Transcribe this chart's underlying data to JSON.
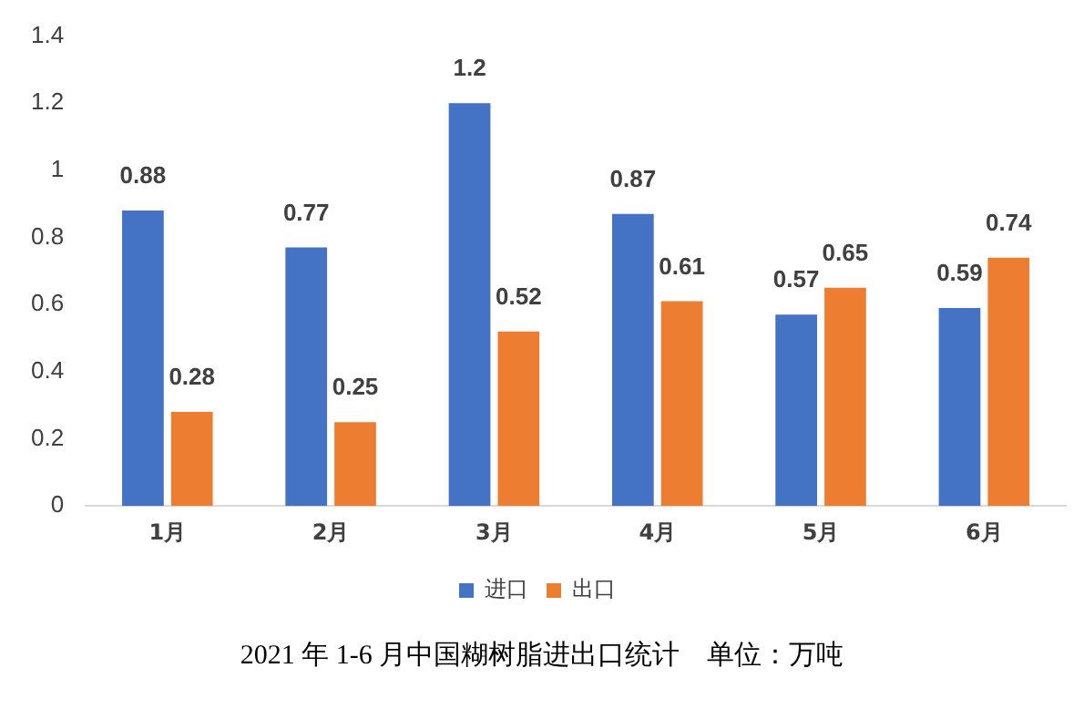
{
  "chart_data": {
    "type": "bar",
    "categories": [
      "1月",
      "2月",
      "3月",
      "4月",
      "5月",
      "6月"
    ],
    "series": [
      {
        "name": "进口",
        "color": "#4472c4",
        "values": [
          0.88,
          0.77,
          1.2,
          0.87,
          0.57,
          0.59
        ]
      },
      {
        "name": "出口",
        "color": "#ed7d31",
        "values": [
          0.28,
          0.25,
          0.52,
          0.61,
          0.65,
          0.74
        ]
      }
    ],
    "ylim": [
      0,
      1.4
    ],
    "yticks": [
      0,
      0.2,
      0.4,
      0.6,
      0.8,
      1,
      1.2,
      1.4
    ],
    "grid": false,
    "legend": "bottom",
    "data_labels": true,
    "annotations": [
      "2021 年 1-6 月中国糊树脂进出口统计    单位：万吨"
    ]
  }
}
